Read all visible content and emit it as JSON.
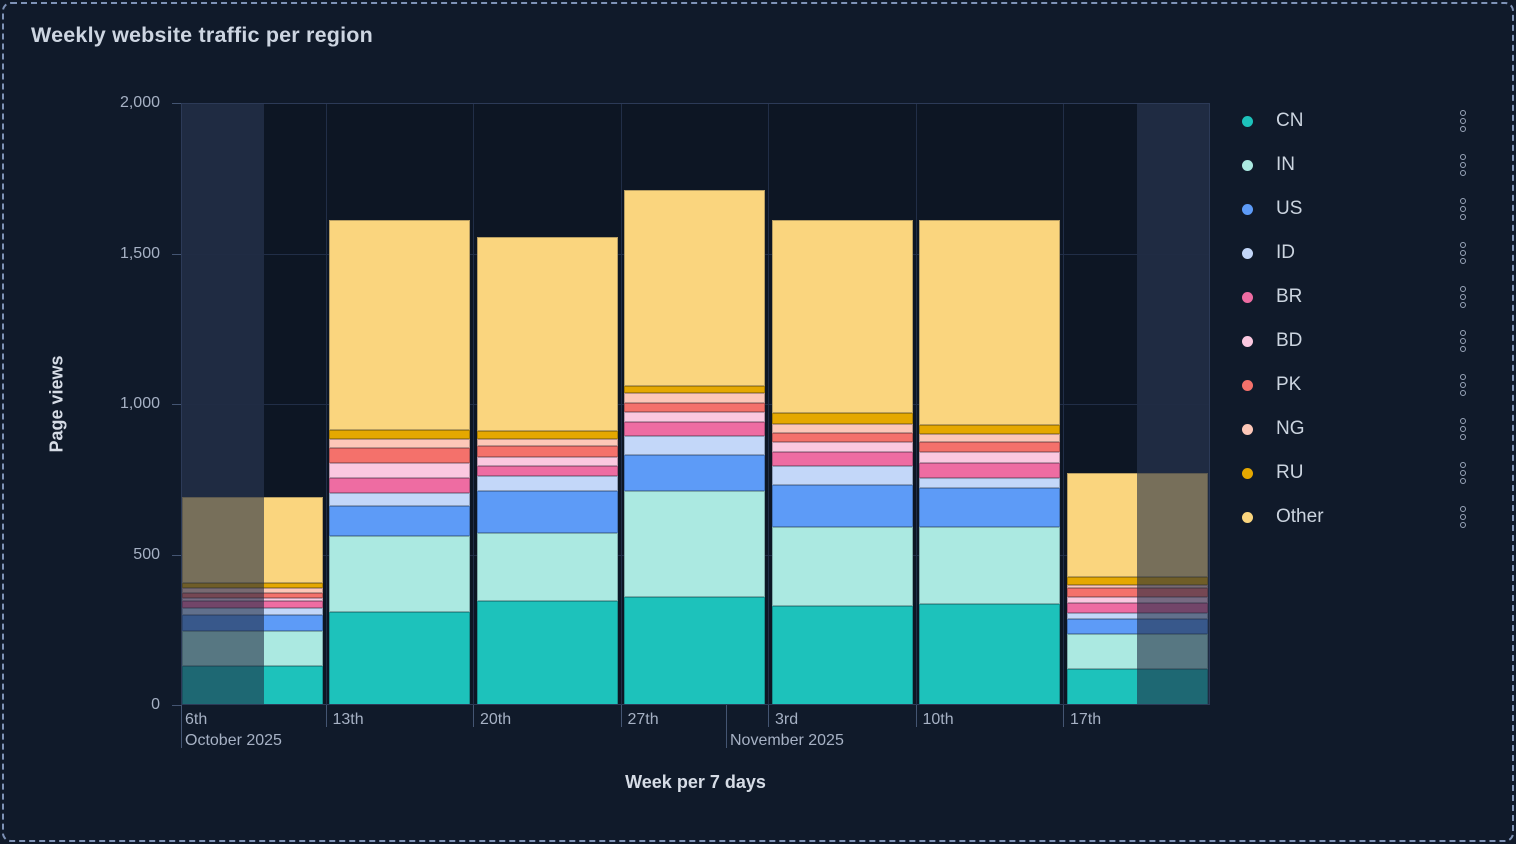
{
  "panel": {
    "title": "Weekly website traffic per region"
  },
  "colors": {
    "panel_background": "#101A2A",
    "plot_background": "#0D1624",
    "dim_region": "#1F2B43",
    "dashed_border": "#7E92B6",
    "grid_line": "#212E47",
    "plot_border": "#2C3A57",
    "tick_line": "#445572",
    "axis_tick_text": "#A6B1C4",
    "axis_title_text": "#D6DCE6",
    "title_text": "#CDD5E1",
    "legend_text": "#CBD4DF",
    "legend_menu_icon_color": "#9AA6BA"
  },
  "icons": {
    "legend_menu": "kebab-vertical-dots-icon"
  },
  "y_axis": {
    "title": "Page views",
    "ticks": [
      {
        "label": "0",
        "value": 0
      },
      {
        "label": "500",
        "value": 500
      },
      {
        "label": "1,000",
        "value": 1000
      },
      {
        "label": "1,500",
        "value": 1500
      },
      {
        "label": "2,000",
        "value": 2000
      }
    ]
  },
  "x_axis": {
    "title": "Week per 7 days",
    "ticks": [
      {
        "label": "6th",
        "month": "October 2025"
      },
      {
        "label": "13th"
      },
      {
        "label": "20th"
      },
      {
        "label": "27th"
      },
      {
        "label": "3rd",
        "month": "November 2025"
      },
      {
        "label": "10th"
      },
      {
        "label": "17th"
      }
    ]
  },
  "legend": {
    "items": [
      {
        "label": "CN",
        "color": "#1DC2BB"
      },
      {
        "label": "IN",
        "color": "#ABE9E1"
      },
      {
        "label": "US",
        "color": "#5D9BF7"
      },
      {
        "label": "ID",
        "color": "#C3D7F9"
      },
      {
        "label": "BR",
        "color": "#EE6CA2"
      },
      {
        "label": "BD",
        "color": "#FBC8E0"
      },
      {
        "label": "PK",
        "color": "#F4716B"
      },
      {
        "label": "NG",
        "color": "#FDC7B8"
      },
      {
        "label": "RU",
        "color": "#E5A800"
      },
      {
        "label": "Other",
        "color": "#FAD57E"
      }
    ]
  },
  "chart_data": {
    "type": "bar",
    "stacked": true,
    "title": "Weekly website traffic per region",
    "xlabel": "Week per 7 days",
    "ylabel": "Page views",
    "ylim": [
      0,
      2000
    ],
    "grid": true,
    "legend_position": "right",
    "categories": [
      "6th Oct 2025",
      "13th Oct 2025",
      "20th Oct 2025",
      "27th Oct 2025",
      "3rd Nov 2025",
      "10th Nov 2025",
      "17th Nov 2025"
    ],
    "series": [
      {
        "name": "CN",
        "color": "#1DC2BB",
        "values": [
          130,
          310,
          345,
          360,
          330,
          335,
          120
        ]
      },
      {
        "name": "IN",
        "color": "#ABE9E1",
        "values": [
          115,
          250,
          225,
          350,
          260,
          255,
          115
        ]
      },
      {
        "name": "US",
        "color": "#5D9BF7",
        "values": [
          55,
          100,
          140,
          120,
          140,
          130,
          50
        ]
      },
      {
        "name": "ID",
        "color": "#C3D7F9",
        "values": [
          22,
          45,
          50,
          65,
          65,
          35,
          22
        ]
      },
      {
        "name": "BR",
        "color": "#EE6CA2",
        "values": [
          22,
          50,
          35,
          45,
          45,
          50,
          33
        ]
      },
      {
        "name": "BD",
        "color": "#FBC8E0",
        "values": [
          12,
          50,
          30,
          35,
          35,
          35,
          20
        ]
      },
      {
        "name": "PK",
        "color": "#F4716B",
        "values": [
          15,
          50,
          35,
          30,
          30,
          35,
          28
        ]
      },
      {
        "name": "NG",
        "color": "#FDC7B8",
        "values": [
          17,
          30,
          25,
          30,
          30,
          25,
          12
        ]
      },
      {
        "name": "RU",
        "color": "#E5A800",
        "values": [
          17,
          30,
          25,
          25,
          35,
          30,
          25
        ]
      },
      {
        "name": "Other",
        "color": "#FAD57E",
        "values": [
          285,
          695,
          645,
          650,
          640,
          680,
          345
        ]
      }
    ],
    "totals": [
      690,
      1610,
      1555,
      1710,
      1610,
      1610,
      770
    ],
    "edge_dim_overlays": {
      "left": true,
      "right": true
    }
  }
}
